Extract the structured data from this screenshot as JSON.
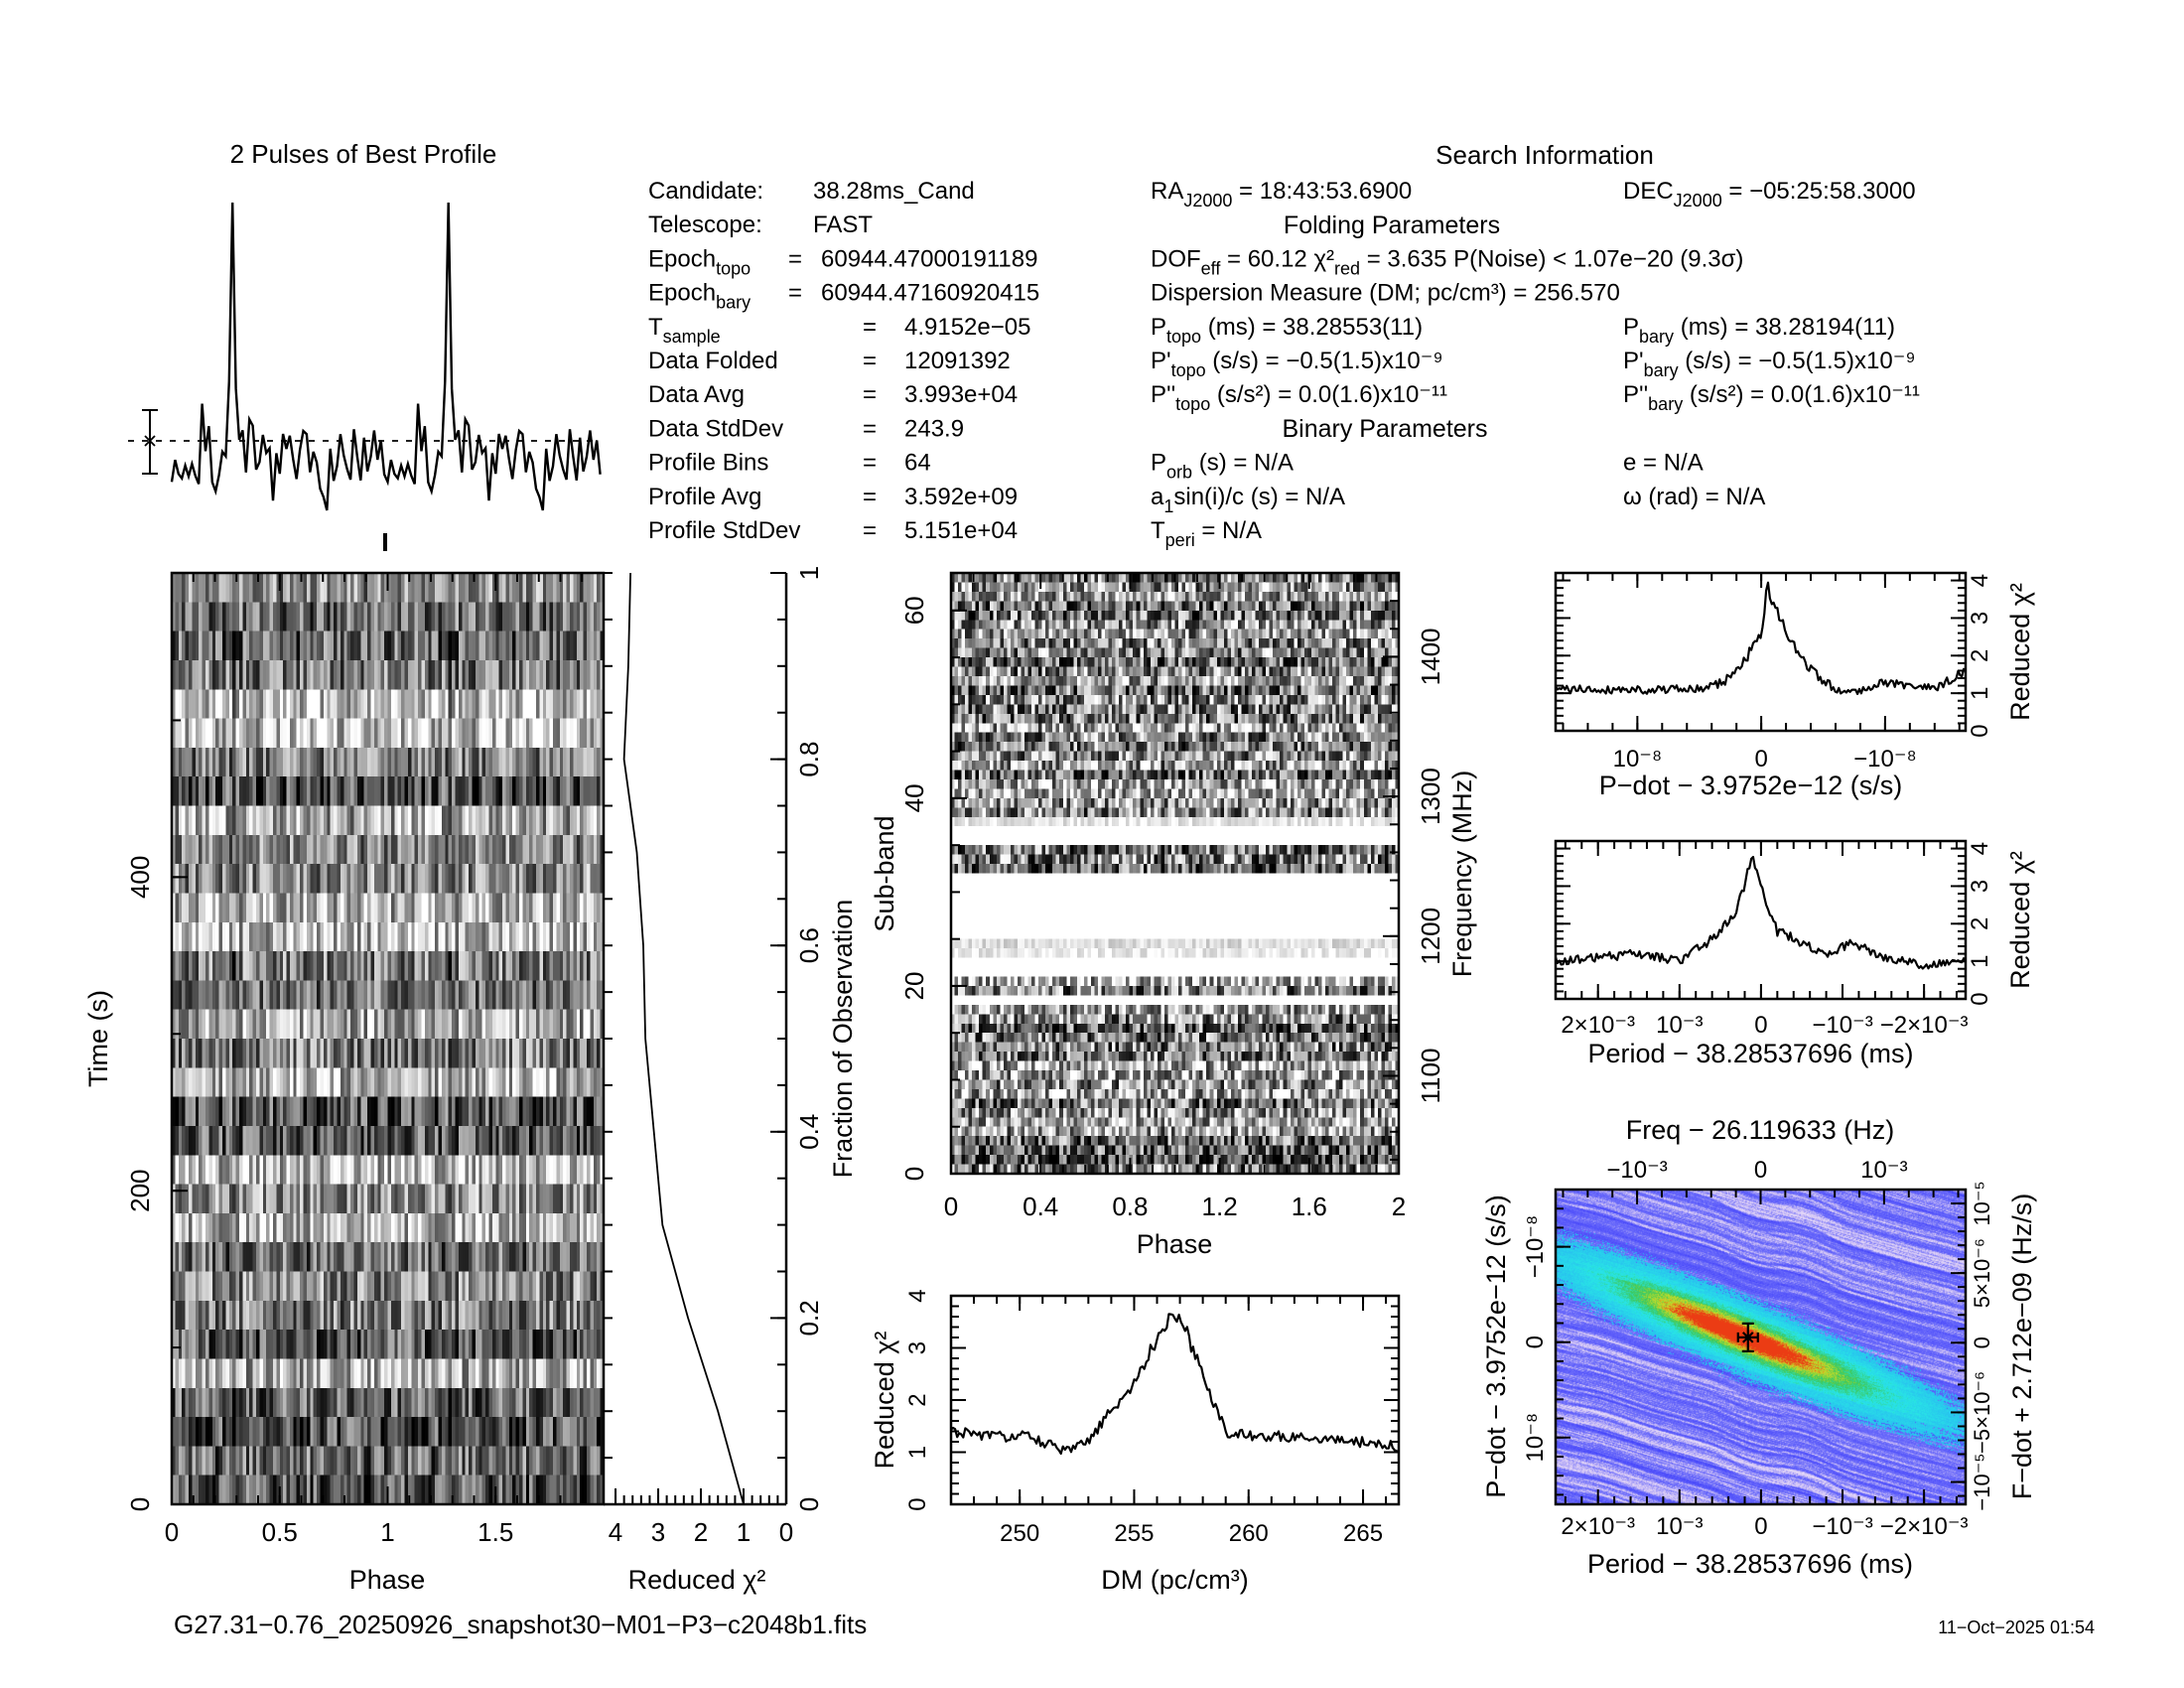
{
  "profile": {
    "title": "2 Pulses of Best Profile"
  },
  "header": {
    "search_title": "Search Information",
    "folding_title": "Folding Parameters",
    "binary_title": "Binary Parameters",
    "left": [
      {
        "label": [
          {
            "t": "Candidate:"
          }
        ],
        "value": "38.28ms_Cand"
      },
      {
        "label": [
          {
            "t": "Telescope:"
          }
        ],
        "value": "FAST"
      },
      {
        "label": [
          {
            "t": "Epoch"
          },
          {
            "s": "topo"
          }
        ],
        "eq": "=",
        "value": "60944.47000191189"
      },
      {
        "label": [
          {
            "t": "Epoch"
          },
          {
            "s": "bary"
          }
        ],
        "eq": "=",
        "value": "60944.47160920415"
      },
      {
        "label": [
          {
            "t": "T"
          },
          {
            "s": "sample"
          }
        ],
        "eq": "=",
        "value": "4.9152e−05"
      },
      {
        "label": [
          {
            "t": "Data Folded"
          }
        ],
        "eq": "=",
        "value": "12091392"
      },
      {
        "label": [
          {
            "t": "Data Avg"
          }
        ],
        "eq": "=",
        "value": "3.993e+04"
      },
      {
        "label": [
          {
            "t": "Data StdDev"
          }
        ],
        "eq": "=",
        "value": "243.9"
      },
      {
        "label": [
          {
            "t": "Profile Bins"
          }
        ],
        "eq": "=",
        "value": "64"
      },
      {
        "label": [
          {
            "t": "Profile Avg"
          }
        ],
        "eq": "=",
        "value": "3.592e+09"
      },
      {
        "label": [
          {
            "t": "Profile StdDev"
          }
        ],
        "eq": "=",
        "value": "5.151e+04"
      }
    ],
    "middle": [
      [
        {
          "t": "RA"
        },
        {
          "s": "J2000"
        },
        {
          "t": " = 18:43:53.6900"
        }
      ],
      [
        {
          "t": "DOF"
        },
        {
          "s": "eff"
        },
        {
          "t": " = 60.12  χ²"
        },
        {
          "s": "red"
        },
        {
          "t": " = 3.635  P(Noise) < 1.07e−20  (9.3σ)"
        }
      ],
      [
        {
          "t": "Dispersion Measure (DM; pc/cm³) = 256.570"
        }
      ],
      [
        {
          "t": "P"
        },
        {
          "s": "topo"
        },
        {
          "t": " (ms) =  38.28553(11)"
        }
      ],
      [
        {
          "t": "P'"
        },
        {
          "s": "topo"
        },
        {
          "t": " (s/s) = −0.5(1.5)x10⁻⁹"
        }
      ],
      [
        {
          "t": "P''"
        },
        {
          "s": "topo"
        },
        {
          "t": " (s/s²) = 0.0(1.6)x10⁻¹¹"
        }
      ],
      [
        {
          "t": "P"
        },
        {
          "s": "orb"
        },
        {
          "t": " (s) = N/A"
        }
      ],
      [
        {
          "t": "a"
        },
        {
          "s": "1"
        },
        {
          "t": "sin(i)/c (s) = N/A"
        }
      ],
      [
        {
          "t": "T"
        },
        {
          "s": "peri"
        },
        {
          "t": " = N/A"
        }
      ]
    ],
    "right": [
      [
        {
          "t": "DEC"
        },
        {
          "s": "J2000"
        },
        {
          "t": " = −05:25:58.3000"
        }
      ],
      [
        {
          "t": "P"
        },
        {
          "s": "bary"
        },
        {
          "t": " (ms) =  38.28194(11)"
        }
      ],
      [
        {
          "t": "P'"
        },
        {
          "s": "bary"
        },
        {
          "t": " (s/s) = −0.5(1.5)x10⁻⁹"
        }
      ],
      [
        {
          "t": "P''"
        },
        {
          "s": "bary"
        },
        {
          "t": " (s/s²) = 0.0(1.6)x10⁻¹¹"
        }
      ],
      [
        {
          "t": "e = N/A"
        }
      ],
      [
        {
          "t": "ω (rad) = N/A"
        }
      ]
    ]
  },
  "footer": {
    "filename": "G27.31−0.76_20250926_snapshot30−M01−P3−c2048b1.fits",
    "date": "11−Oct−2025 01:54"
  },
  "chart_data": [
    {
      "id": "profile",
      "type": "line",
      "title": "2 Pulses of Best Profile",
      "bins": 64,
      "pulses_shown": 2,
      "peak_phase": [
        0.28,
        1.28
      ]
    },
    {
      "id": "time_phase",
      "type": "heatmap",
      "colormap": "grayscale",
      "xlabel": "Phase",
      "ylabel": "Time (s)",
      "xlim": [
        0,
        2
      ],
      "ylim": [
        0,
        594
      ],
      "xticks": [
        {
          "v": 0,
          "label": "0"
        },
        {
          "v": 0.5,
          "label": "0.5"
        },
        {
          "v": 1,
          "label": "1"
        },
        {
          "v": 1.5,
          "label": "1.5"
        }
      ],
      "yticks": [
        {
          "v": 0,
          "label": "0"
        },
        {
          "v": 200,
          "label": "200"
        },
        {
          "v": 400,
          "label": "400"
        }
      ],
      "pulse_phase": 0.28
    },
    {
      "id": "time_chi2",
      "type": "line",
      "xlabel": "Reduced χ²",
      "ylabel": "Fraction of Observation",
      "xlim": [
        4.28,
        0
      ],
      "ylim": [
        0,
        1
      ],
      "xticks": [
        {
          "v": 4,
          "label": "4"
        },
        {
          "v": 3,
          "label": "3"
        },
        {
          "v": 2,
          "label": "2"
        },
        {
          "v": 1,
          "label": "1"
        },
        {
          "v": 0,
          "label": "0"
        }
      ],
      "yticks": [
        {
          "v": 0,
          "label": "0"
        },
        {
          "v": 0.2,
          "label": "0.2"
        },
        {
          "v": 0.4,
          "label": "0.4"
        },
        {
          "v": 0.6,
          "label": "0.6"
        },
        {
          "v": 0.8,
          "label": "0.8"
        },
        {
          "v": 1,
          "label": "1"
        }
      ],
      "points": [
        [
          1.0,
          0
        ],
        [
          1.6,
          0.1
        ],
        [
          2.3,
          0.2
        ],
        [
          2.9,
          0.3
        ],
        [
          3.1,
          0.4
        ],
        [
          3.3,
          0.5
        ],
        [
          3.35,
          0.6
        ],
        [
          3.5,
          0.7
        ],
        [
          3.8,
          0.8
        ],
        [
          3.7,
          0.9
        ],
        [
          3.65,
          1.0
        ]
      ]
    },
    {
      "id": "subbands",
      "type": "heatmap",
      "colormap": "grayscale",
      "xlabel": "Phase",
      "ylabel": "Sub-band",
      "y2label": "Frequency (MHz)",
      "xlim": [
        0,
        2
      ],
      "ylim": [
        0,
        64
      ],
      "y2lim": [
        1030,
        1460
      ],
      "xticks": [
        {
          "v": 0,
          "label": "0"
        },
        {
          "v": 0.4,
          "label": "0.4"
        },
        {
          "v": 0.8,
          "label": "0.8"
        },
        {
          "v": 1.2,
          "label": "1.2"
        },
        {
          "v": 1.6,
          "label": "1.6"
        },
        {
          "v": 2,
          "label": "2"
        }
      ],
      "yticks": [
        {
          "v": 0,
          "label": "0"
        },
        {
          "v": 20,
          "label": "20"
        },
        {
          "v": 40,
          "label": "40"
        },
        {
          "v": 60,
          "label": "60"
        }
      ],
      "y2ticks": [
        {
          "v": 1100,
          "label": "1100"
        },
        {
          "v": 1200,
          "label": "1200"
        },
        {
          "v": 1300,
          "label": "1300"
        },
        {
          "v": 1400,
          "label": "1400"
        }
      ],
      "zapped_subbands": [
        18,
        21,
        22,
        25,
        26,
        27,
        28,
        29,
        30,
        31,
        35,
        36
      ]
    },
    {
      "id": "dm",
      "type": "line",
      "xlabel": "DM (pc/cm³)",
      "ylabel": "Reduced χ²",
      "xlim": [
        247.0,
        266.56
      ],
      "ylim": [
        0,
        4
      ],
      "xticks": [
        {
          "v": 250,
          "label": "250"
        },
        {
          "v": 255,
          "label": "255"
        },
        {
          "v": 260,
          "label": "260"
        },
        {
          "v": 265,
          "label": "265"
        }
      ],
      "yticks": [
        {
          "v": 0,
          "label": "0"
        },
        {
          "v": 1,
          "label": "1"
        },
        {
          "v": 2,
          "label": "2"
        },
        {
          "v": 3,
          "label": "3"
        },
        {
          "v": 4,
          "label": "4"
        }
      ],
      "points": [
        [
          247,
          1.4
        ],
        [
          249,
          1.3
        ],
        [
          250.5,
          1.3
        ],
        [
          252,
          1.0
        ],
        [
          253,
          1.2
        ],
        [
          254,
          1.8
        ],
        [
          255,
          2.3
        ],
        [
          256,
          3.2
        ],
        [
          256.6,
          3.65
        ],
        [
          257.2,
          3.4
        ],
        [
          258,
          2.5
        ],
        [
          259,
          1.4
        ],
        [
          260,
          1.3
        ],
        [
          262,
          1.3
        ],
        [
          264,
          1.25
        ],
        [
          266.56,
          1.1
        ]
      ]
    },
    {
      "id": "pdot_chi2",
      "type": "line",
      "xlabel": "P−dot − 3.9752e−12 (s/s)",
      "ylabel": "Reduced χ²",
      "xlim": [
        1.66e-08,
        -1.65e-08
      ],
      "ylim": [
        0,
        4.2
      ],
      "xticks": [
        {
          "v": 1e-08,
          "label": "10⁻⁸"
        },
        {
          "v": 0,
          "label": "0"
        },
        {
          "v": -1e-08,
          "label": "−10⁻⁸"
        }
      ],
      "yticks": [
        {
          "v": 0,
          "label": "0"
        },
        {
          "v": 1,
          "label": "1"
        },
        {
          "v": 2,
          "label": "2"
        },
        {
          "v": 3,
          "label": "3"
        },
        {
          "v": 4,
          "label": "4"
        }
      ],
      "points": [
        [
          1.66e-08,
          1.1
        ],
        [
          1e-08,
          1.1
        ],
        [
          5e-09,
          1.1
        ],
        [
          3e-09,
          1.3
        ],
        [
          1.5e-09,
          1.8
        ],
        [
          5e-10,
          2.3
        ],
        [
          0,
          2.6
        ],
        [
          -5e-10,
          3.8
        ],
        [
          -1.5e-09,
          3.0
        ],
        [
          -3e-09,
          2.0
        ],
        [
          -5e-09,
          1.3
        ],
        [
          -7e-09,
          1.0
        ],
        [
          -1e-08,
          1.3
        ],
        [
          -1.4e-08,
          1.1
        ],
        [
          -1.65e-08,
          1.6
        ]
      ]
    },
    {
      "id": "period_chi2",
      "type": "line",
      "xlabel": "Period − 38.28537696 (ms)",
      "ylabel": "Reduced χ²",
      "xlim": [
        0.00252,
        -0.00251
      ],
      "ylim": [
        0,
        4.2
      ],
      "xticks": [
        {
          "v": 0.002,
          "label": "2×10⁻³"
        },
        {
          "v": 0.001,
          "label": "10⁻³"
        },
        {
          "v": 0,
          "label": "0"
        },
        {
          "v": -0.001,
          "label": "−10⁻³"
        },
        {
          "v": -0.002,
          "label": "−2×10⁻³"
        }
      ],
      "yticks": [
        {
          "v": 0,
          "label": "0"
        },
        {
          "v": 1,
          "label": "1"
        },
        {
          "v": 2,
          "label": "2"
        },
        {
          "v": 3,
          "label": "3"
        },
        {
          "v": 4,
          "label": "4"
        }
      ],
      "points": [
        [
          0.00252,
          1.0
        ],
        [
          0.0015,
          1.2
        ],
        [
          0.001,
          1.0
        ],
        [
          0.0006,
          1.6
        ],
        [
          0.0003,
          2.3
        ],
        [
          0.00015,
          3.5
        ],
        [
          0.0001,
          3.9
        ],
        [
          0,
          3.0
        ],
        [
          -0.0002,
          1.8
        ],
        [
          -0.0005,
          1.5
        ],
        [
          -0.0008,
          1.1
        ],
        [
          -0.0011,
          1.5
        ],
        [
          -0.0015,
          1.1
        ],
        [
          -0.002,
          0.9
        ],
        [
          -0.00251,
          1.0
        ]
      ]
    },
    {
      "id": "p_pdot_plane",
      "type": "heatmap",
      "colormap": "blue-cyan-green-yellow-red",
      "xlabel": "Period − 38.28537696 (ms)",
      "x2label": "Freq − 26.119633 (Hz)",
      "ylabel": "P−dot − 3.9752e−12 (s/s)",
      "y2label": "F−dot + 2.712e−09 (Hz/s)",
      "xlim": [
        0.00252,
        -0.00251
      ],
      "x2lim": [
        -0.00166,
        0.00166
      ],
      "ylim": [
        1.7e-08,
        -1.6e-08
      ],
      "y2lim": [
        -1.16e-05,
        1.1e-05
      ],
      "xticks": [
        {
          "v": 0.002,
          "label": "2×10⁻³"
        },
        {
          "v": 0.001,
          "label": "10⁻³"
        },
        {
          "v": 0,
          "label": "0"
        },
        {
          "v": -0.001,
          "label": "−10⁻³"
        },
        {
          "v": -0.002,
          "label": "−2×10⁻³"
        }
      ],
      "x2ticks": [
        {
          "v": -0.001,
          "label": "−10⁻³"
        },
        {
          "v": 0,
          "label": "0"
        },
        {
          "v": 0.001,
          "label": "10⁻³"
        }
      ],
      "yticks": [
        {
          "v": 1e-08,
          "label": "10⁻⁸"
        },
        {
          "v": 0,
          "label": "0"
        },
        {
          "v": -1e-08,
          "label": "−10⁻⁸"
        }
      ],
      "y2ticks": [
        {
          "v": 1e-05,
          "label": "10⁻⁵"
        },
        {
          "v": 5e-06,
          "label": "5×10⁻⁶"
        },
        {
          "v": 0,
          "label": "0"
        },
        {
          "v": -5e-06,
          "label": "−5×10⁻⁶"
        },
        {
          "v": -1e-05,
          "label": "−10⁻⁵"
        }
      ],
      "best": {
        "period": 0.00016,
        "pdot": -5e-10
      }
    }
  ]
}
